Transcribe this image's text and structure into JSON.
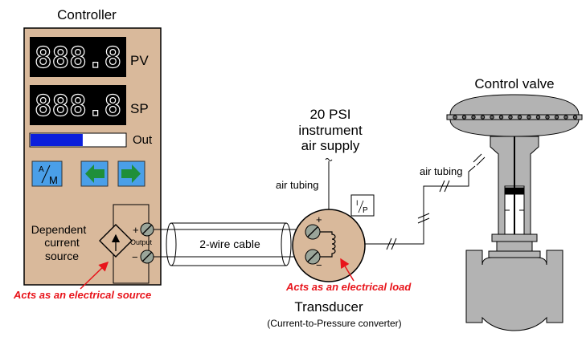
{
  "controller": {
    "title": "Controller",
    "pv_display": "888.8",
    "pv_label": "PV",
    "sp_display": "888.8",
    "sp_label": "SP",
    "out_label": "Out",
    "output_level": 0.55,
    "am_button": {
      "top": "A",
      "bottom": "M",
      "icon": "auto-manual-icon"
    },
    "left_button_icon": "arrow-left-icon",
    "right_button_icon": "arrow-right-icon",
    "source_label_1": "Dependent",
    "source_label_2": "current",
    "source_label_3": "source",
    "output_label": "Output",
    "plus": "+",
    "minus": "−",
    "source_note": "Acts as an electrical source"
  },
  "cable": {
    "label": "2-wire cable"
  },
  "air_supply": {
    "line1": "20 PSI",
    "line2": "instrument",
    "line3": "air supply",
    "tubing_label": "air tubing"
  },
  "transducer": {
    "tag_top": "I",
    "tag_bottom": "P",
    "plus": "+",
    "minus": "−",
    "load_note": "Acts as an electrical load",
    "title": "Transducer",
    "subtitle": "(Current-to-Pressure converter)"
  },
  "valve": {
    "title": "Control valve",
    "tubing_label": "air tubing"
  },
  "colors": {
    "panel": "#d9b99b",
    "display_bg": "#000000",
    "bar_fill": "#0b1fdc",
    "button_blue": "#4a9fe8",
    "arrow_green": "#1f8f3a",
    "transducer_body": "#d9b99b",
    "valve_gray": "#b3b3b3",
    "note_red": "#e8141b"
  }
}
